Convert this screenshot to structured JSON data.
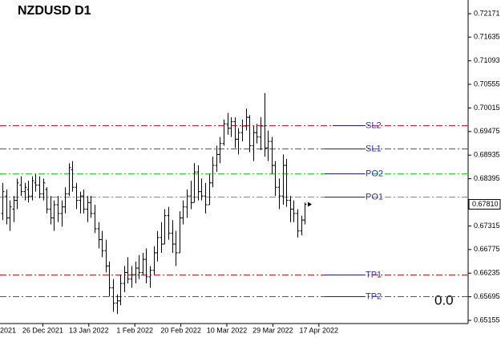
{
  "chart_data": {
    "type": "ohlc",
    "title": "NZDUSD   D1",
    "ylim": [
      0.65082,
      0.72484
    ],
    "yticks": [
      0.72171,
      0.71635,
      0.71093,
      0.70555,
      0.70015,
      0.69475,
      0.68935,
      0.68395,
      0.67315,
      0.66775,
      0.66235,
      0.65695,
      0.65155
    ],
    "x_labels": [
      "2021",
      "26 Dec 2021",
      "13 Jan 2022",
      "1 Feb 2022",
      "20 Feb 2022",
      "10 Mar 2022",
      "29 Mar 2022",
      "17 Apr 2022"
    ],
    "color": "#000000",
    "open": [
      0.676,
      0.68,
      0.675,
      0.677,
      0.679,
      0.6825,
      0.681,
      0.6815,
      0.68,
      0.683,
      0.6825,
      0.6805,
      0.6815,
      0.677,
      0.675,
      0.678,
      0.676,
      0.6775,
      0.6805,
      0.686,
      0.682,
      0.679,
      0.68,
      0.677,
      0.6785,
      0.676,
      0.6725,
      0.67,
      0.6675,
      0.664,
      0.659,
      0.6555,
      0.656,
      0.66,
      0.6625,
      0.661,
      0.662,
      0.6635,
      0.6625,
      0.6655,
      0.6615,
      0.663,
      0.667,
      0.6705,
      0.669,
      0.6755,
      0.6715,
      0.669,
      0.667,
      0.675,
      0.6775,
      0.68,
      0.6785,
      0.6855,
      0.681,
      0.68,
      0.678,
      0.683,
      0.687,
      0.6895,
      0.692,
      0.6965,
      0.6955,
      0.697,
      0.693,
      0.6945,
      0.696,
      0.698,
      0.6915,
      0.6945,
      0.6935,
      0.696,
      0.691,
      0.6925,
      0.687,
      0.682,
      0.68,
      0.687,
      0.679,
      0.677,
      0.676,
      0.672,
      0.6745
    ],
    "high": [
      0.683,
      0.6815,
      0.679,
      0.68,
      0.684,
      0.6845,
      0.683,
      0.6835,
      0.6845,
      0.685,
      0.6845,
      0.684,
      0.682,
      0.68,
      0.679,
      0.68,
      0.679,
      0.682,
      0.6875,
      0.688,
      0.683,
      0.681,
      0.6815,
      0.68,
      0.68,
      0.678,
      0.674,
      0.672,
      0.67,
      0.665,
      0.661,
      0.6575,
      0.662,
      0.664,
      0.666,
      0.664,
      0.665,
      0.6665,
      0.667,
      0.668,
      0.664,
      0.6685,
      0.672,
      0.674,
      0.677,
      0.6775,
      0.6745,
      0.672,
      0.6765,
      0.679,
      0.6815,
      0.6835,
      0.6875,
      0.687,
      0.684,
      0.683,
      0.685,
      0.689,
      0.6915,
      0.6935,
      0.6975,
      0.699,
      0.698,
      0.698,
      0.6955,
      0.6975,
      0.7,
      0.6985,
      0.696,
      0.6965,
      0.698,
      0.7035,
      0.695,
      0.6935,
      0.688,
      0.684,
      0.6895,
      0.6885,
      0.68,
      0.679,
      0.677,
      0.6755,
      0.6785
    ],
    "low": [
      0.6745,
      0.6735,
      0.672,
      0.674,
      0.677,
      0.68,
      0.679,
      0.6785,
      0.679,
      0.681,
      0.6795,
      0.679,
      0.676,
      0.6735,
      0.672,
      0.674,
      0.673,
      0.676,
      0.68,
      0.681,
      0.677,
      0.676,
      0.676,
      0.674,
      0.675,
      0.6715,
      0.668,
      0.666,
      0.6625,
      0.657,
      0.6535,
      0.653,
      0.655,
      0.658,
      0.66,
      0.659,
      0.66,
      0.661,
      0.662,
      0.66,
      0.659,
      0.662,
      0.665,
      0.667,
      0.669,
      0.67,
      0.667,
      0.664,
      0.667,
      0.6735,
      0.675,
      0.677,
      0.6785,
      0.679,
      0.679,
      0.676,
      0.678,
      0.682,
      0.6855,
      0.6875,
      0.6915,
      0.694,
      0.6935,
      0.691,
      0.6895,
      0.6925,
      0.695,
      0.69,
      0.688,
      0.692,
      0.6905,
      0.689,
      0.688,
      0.685,
      0.68,
      0.677,
      0.678,
      0.6775,
      0.674,
      0.674,
      0.6705,
      0.671,
      0.6735
    ],
    "close": [
      0.681,
      0.675,
      0.6775,
      0.679,
      0.683,
      0.681,
      0.682,
      0.68,
      0.6835,
      0.6825,
      0.6805,
      0.683,
      0.677,
      0.675,
      0.678,
      0.676,
      0.6775,
      0.6805,
      0.6865,
      0.682,
      0.679,
      0.68,
      0.677,
      0.6785,
      0.676,
      0.6725,
      0.67,
      0.6675,
      0.664,
      0.659,
      0.6555,
      0.656,
      0.66,
      0.6625,
      0.661,
      0.662,
      0.6635,
      0.6625,
      0.6655,
      0.6615,
      0.663,
      0.667,
      0.6705,
      0.669,
      0.6755,
      0.6715,
      0.669,
      0.667,
      0.675,
      0.6775,
      0.68,
      0.6785,
      0.6855,
      0.681,
      0.68,
      0.678,
      0.683,
      0.687,
      0.6895,
      0.692,
      0.6965,
      0.6955,
      0.697,
      0.693,
      0.6945,
      0.696,
      0.698,
      0.6915,
      0.6945,
      0.6935,
      0.696,
      0.691,
      0.6925,
      0.687,
      0.682,
      0.68,
      0.687,
      0.679,
      0.677,
      0.676,
      0.672,
      0.6745,
      0.6781
    ],
    "levels": [
      {
        "name": "SL2",
        "value": 0.6962,
        "color": "#d42020"
      },
      {
        "name": "SL1",
        "value": 0.6909,
        "color": "#d42020"
      },
      {
        "name": "PO2",
        "value": 0.6852,
        "color": "#30c030"
      },
      {
        "name": "PO1",
        "value": 0.6798,
        "color": "#30c030"
      },
      {
        "name": "TP1",
        "value": 0.662,
        "color": "#d42020"
      },
      {
        "name": "TP2",
        "value": 0.6571,
        "color": "#d42020"
      }
    ],
    "price_label": {
      "value": 0.6781,
      "label": "0.67810"
    },
    "annotation": "0.0"
  }
}
